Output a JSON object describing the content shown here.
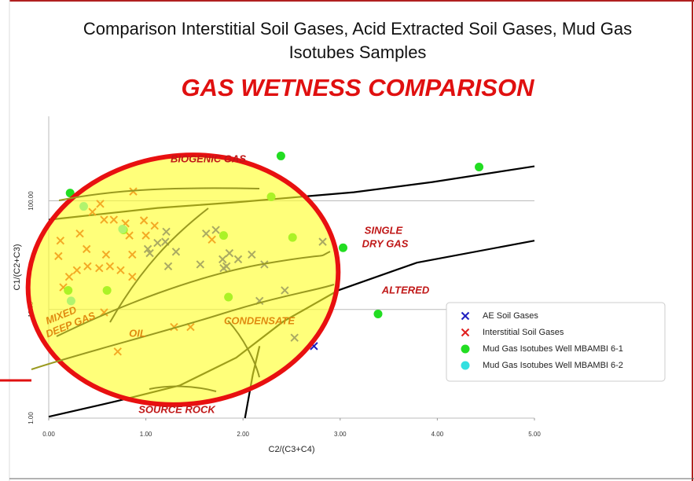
{
  "chart_data": {
    "type": "scatter",
    "title": "Comparison Interstitial Soil Gases, Acid Extracted Soil Gases, Mud Gas Isotubes Samples",
    "subtitle": "GAS WETNESS COMPARISON",
    "x_label": "C2/(C3+C4)",
    "y_label": "C1/(C2+C3)",
    "xlim": [
      0,
      5
    ],
    "ylim": [
      1,
      600
    ],
    "y_log": true,
    "grid": true,
    "legend": "right",
    "xticks": [
      {
        "value": 0,
        "label": "0.00"
      },
      {
        "value": 1,
        "label": "1.00"
      },
      {
        "value": 2,
        "label": "2.00"
      },
      {
        "value": 3,
        "label": "3.00"
      },
      {
        "value": 4,
        "label": "4.00"
      },
      {
        "value": 5,
        "label": "5.00"
      }
    ],
    "yticks": [
      {
        "value": 1,
        "label": "1.00"
      },
      {
        "value": 10,
        "label": "10.00"
      },
      {
        "value": 100,
        "label": "100.00"
      }
    ],
    "series": [
      {
        "name": "AE Soil Gases",
        "color": "#2020c0",
        "marker": "x",
        "x": [
          1.21,
          1.62,
          1.72,
          1.04,
          1.12,
          1.2,
          1.31,
          1.23,
          1.02,
          1.56,
          1.79,
          1.86,
          1.95,
          2.09,
          1.8,
          1.83,
          2.22,
          2.82,
          2.17,
          2.43,
          2.53,
          2.73
        ],
        "values": [
          52,
          50,
          54,
          33,
          41,
          42,
          34,
          25,
          36,
          26,
          29,
          33,
          29,
          32,
          24,
          25,
          26,
          42,
          12,
          15,
          5.5,
          4.6
        ]
      },
      {
        "name": "Interstitial Soil Gases",
        "color": "#e02020",
        "marker": "x",
        "x": [
          0.87,
          0.53,
          0.45,
          0.57,
          0.67,
          0.79,
          0.98,
          1.09,
          0.32,
          0.12,
          0.83,
          1.0,
          0.1,
          0.39,
          0.59,
          0.86,
          0.29,
          0.4,
          0.52,
          0.63,
          0.74,
          0.86,
          0.21,
          0.15,
          0.57,
          1.29,
          1.46,
          0.71,
          1.68
        ],
        "values": [
          122,
          94,
          79,
          67,
          67,
          62,
          66,
          59,
          50,
          43,
          48,
          48,
          31,
          36,
          32,
          32,
          23,
          25,
          24,
          25,
          23,
          20,
          20,
          16,
          9.4,
          6.9,
          6.9,
          4.1,
          44
        ]
      },
      {
        "name": "Mud Gas Isotubes Well MBAMBI 6-1",
        "color": "#22dd22",
        "marker": "circle",
        "x": [
          2.39,
          4.43,
          0.22,
          2.29,
          0.77,
          1.8,
          2.51,
          3.03,
          0.6,
          0.2,
          1.85,
          3.39
        ],
        "values": [
          259,
          205,
          118,
          109,
          54,
          48,
          46,
          37,
          15,
          15,
          13,
          9.1
        ]
      },
      {
        "name": "Mud Gas Isotubes Well MBAMBI 6-2",
        "color": "#33e0e0",
        "marker": "circle",
        "x": [
          0.36,
          0.76,
          0.23
        ],
        "values": [
          89,
          55,
          12
        ]
      }
    ],
    "boundaries": [
      {
        "x": [
          0,
          1.12,
          1.93,
          3.14,
          3.95,
          5
        ],
        "values": [
          67,
          86,
          97,
          120,
          149,
          208
        ]
      },
      {
        "x": [
          0,
          0.71,
          1.35,
          1.93,
          2.41,
          2.98,
          3.79,
          5
        ],
        "values": [
          1.03,
          1.44,
          2.0,
          3.6,
          7.7,
          15,
          27,
          43
        ]
      },
      {
        "x": [
          2.02,
          2.1,
          2.17
        ],
        "values": [
          1.0,
          2.5,
          4.6
        ]
      }
    ],
    "annotations": [
      "BIOGENIC GAS",
      "SINGLE",
      "DRY GAS",
      "ALTERED",
      "MIXED",
      "DEEP GAS",
      "OIL",
      "CONDENSATE",
      "SOURCE ROCK"
    ]
  }
}
